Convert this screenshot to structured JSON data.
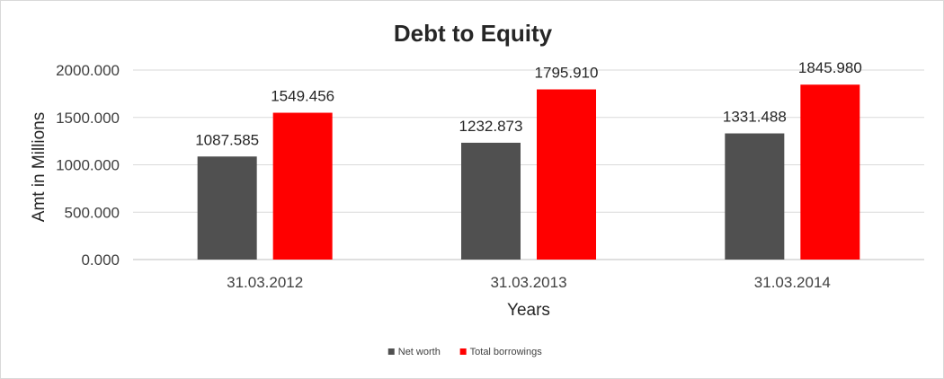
{
  "chart_data": {
    "type": "bar",
    "title": "Debt to Equity",
    "xlabel": "Years",
    "ylabel": "Amt in Millions",
    "categories": [
      "31.03.2012",
      "31.03.2013",
      "31.03.2014"
    ],
    "series": [
      {
        "name": "Net worth",
        "values": [
          1087.585,
          1232.873,
          1331.488
        ],
        "labels": [
          "1087.585",
          "1232.873",
          "1331.488"
        ],
        "color": "#505050"
      },
      {
        "name": "Total borrowings",
        "values": [
          1549.456,
          1795.91,
          1845.98
        ],
        "labels": [
          "1549.456",
          "1795.910",
          "1845.980"
        ],
        "color": "#ff0000"
      }
    ],
    "ylim": [
      0,
      2000
    ],
    "yticks": [
      0,
      500,
      1000,
      1500,
      2000
    ],
    "ytick_labels": [
      "0.000",
      "500.000",
      "1000.000",
      "1500.000",
      "2000.000"
    ],
    "grid": true,
    "legend_position": "bottom"
  }
}
